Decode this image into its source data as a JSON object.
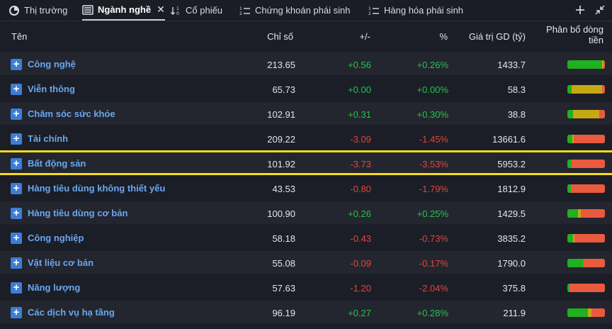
{
  "tabs": [
    {
      "label": "Thị trường",
      "icon": "pie-chart-icon"
    },
    {
      "label": "Ngành nghề",
      "icon": "list-icon",
      "active": true
    },
    {
      "label": "Cổ phiếu",
      "icon": "sort-icon"
    },
    {
      "label": "Chứng khoán phái sinh",
      "icon": "numbered-list-icon"
    },
    {
      "label": "Hàng hóa phái sinh",
      "icon": "numbered-list-icon"
    }
  ],
  "colors": {
    "accent_blue": "#6aa7f0",
    "positive": "#27c24c",
    "negative": "#e3453a",
    "highlight": "#f5dd1a",
    "bar_green": "#1fb11f",
    "bar_yellow": "#c6a813",
    "bar_red": "#e95a3e"
  },
  "table": {
    "headers": {
      "name": "Tên",
      "index": "Chỉ số",
      "change": "+/-",
      "percent": "%",
      "value": "Giá trị GD (tỷ)",
      "flow_line1": "Phân bổ dòng",
      "flow_line2": "tiền"
    },
    "highlighted_row": 4,
    "rows": [
      {
        "name": "Công nghệ",
        "index": "213.65",
        "change": "+0.56",
        "percent": "+0.26%",
        "value": "1433.7",
        "dir": "pos",
        "flow": {
          "green": 0.93,
          "yellow": 0.04,
          "red": 0.03
        }
      },
      {
        "name": "Viễn thông",
        "index": "65.73",
        "change": "+0.00",
        "percent": "+0.00%",
        "value": "58.3",
        "dir": "pos",
        "flow": {
          "green": 0.12,
          "yellow": 0.82,
          "red": 0.06
        }
      },
      {
        "name": "Chăm sóc sức khỏe",
        "index": "102.91",
        "change": "+0.31",
        "percent": "+0.30%",
        "value": "38.8",
        "dir": "pos",
        "flow": {
          "green": 0.16,
          "yellow": 0.7,
          "red": 0.14
        }
      },
      {
        "name": "Tài chính",
        "index": "209.22",
        "change": "-3.09",
        "percent": "-1.45%",
        "value": "13661.6",
        "dir": "neg",
        "flow": {
          "green": 0.14,
          "yellow": 0.04,
          "red": 0.82
        }
      },
      {
        "name": "Bất động sản",
        "index": "101.92",
        "change": "-3.73",
        "percent": "-3.53%",
        "value": "5953.2",
        "dir": "neg",
        "flow": {
          "green": 0.12,
          "yellow": 0.0,
          "red": 0.88
        }
      },
      {
        "name": "Hàng tiêu dùng không thiết yếu",
        "index": "43.53",
        "change": "-0.80",
        "percent": "-1.79%",
        "value": "1812.9",
        "dir": "neg",
        "flow": {
          "green": 0.1,
          "yellow": 0.0,
          "red": 0.9
        }
      },
      {
        "name": "Hàng tiêu dùng cơ bản",
        "index": "100.90",
        "change": "+0.26",
        "percent": "+0.25%",
        "value": "1429.5",
        "dir": "pos",
        "flow": {
          "green": 0.28,
          "yellow": 0.08,
          "red": 0.64
        }
      },
      {
        "name": "Công nghiệp",
        "index": "58.18",
        "change": "-0.43",
        "percent": "-0.73%",
        "value": "3835.2",
        "dir": "neg",
        "flow": {
          "green": 0.16,
          "yellow": 0.04,
          "red": 0.8
        }
      },
      {
        "name": "Vật liệu cơ bản",
        "index": "55.08",
        "change": "-0.09",
        "percent": "-0.17%",
        "value": "1790.0",
        "dir": "neg",
        "flow": {
          "green": 0.42,
          "yellow": 0.0,
          "red": 0.58
        }
      },
      {
        "name": "Năng lượng",
        "index": "57.63",
        "change": "-1.20",
        "percent": "-2.04%",
        "value": "375.8",
        "dir": "neg",
        "flow": {
          "green": 0.06,
          "yellow": 0.0,
          "red": 0.94
        }
      },
      {
        "name": "Các dịch vụ hạ tầng",
        "index": "96.19",
        "change": "+0.27",
        "percent": "+0.28%",
        "value": "211.9",
        "dir": "pos",
        "flow": {
          "green": 0.55,
          "yellow": 0.1,
          "red": 0.35
        }
      }
    ]
  }
}
